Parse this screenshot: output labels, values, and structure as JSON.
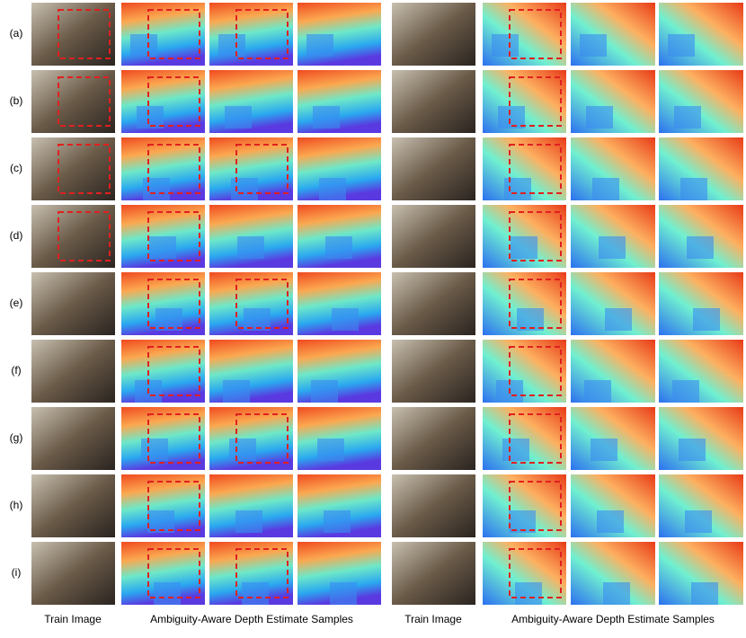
{
  "rows": [
    "(a)",
    "(b)",
    "(c)",
    "(d)",
    "(e)",
    "(f)",
    "(g)",
    "(h)",
    "(i)"
  ],
  "captions": {
    "train_left": "Train Image",
    "samples_left": "Ambiguity-Aware Depth Estimate Samples",
    "train_right": "Train Image",
    "samples_right": "Ambiguity-Aware Depth Estimate Samples"
  }
}
